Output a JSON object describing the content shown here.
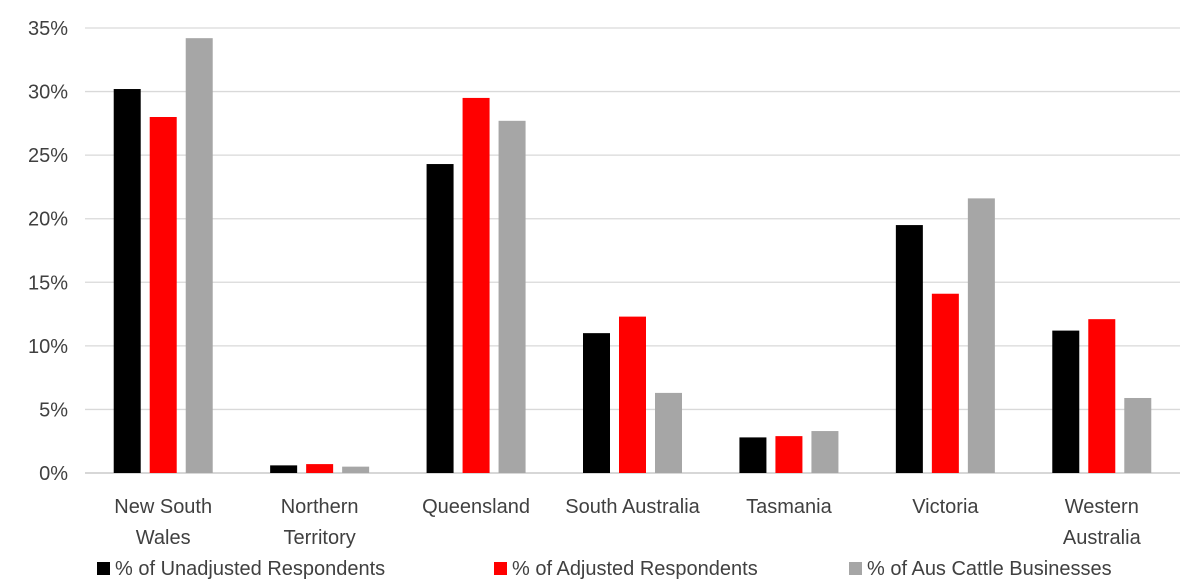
{
  "chart_data": {
    "type": "bar",
    "categories": [
      [
        "New South",
        "Wales"
      ],
      [
        "Northern",
        "Territory"
      ],
      [
        "Queensland"
      ],
      [
        "South Australia"
      ],
      [
        "Tasmania"
      ],
      [
        "Victoria"
      ],
      [
        "Western",
        "Australia"
      ]
    ],
    "series": [
      {
        "name": "% of Unadjusted Respondents",
        "color": "#000000",
        "values": [
          30.2,
          0.6,
          24.3,
          11.0,
          2.8,
          19.5,
          11.2
        ]
      },
      {
        "name": "% of Adjusted Respondents",
        "color": "#ff0000",
        "values": [
          28.0,
          0.7,
          29.5,
          12.3,
          2.9,
          14.1,
          12.1
        ]
      },
      {
        "name": "% of Aus Cattle Businesses",
        "color": "#a6a6a6",
        "values": [
          34.2,
          0.5,
          27.7,
          6.3,
          3.3,
          21.6,
          5.9
        ]
      }
    ],
    "y_ticks": [
      "0%",
      "5%",
      "10%",
      "15%",
      "20%",
      "25%",
      "30%",
      "35%"
    ],
    "ylim": [
      0,
      35
    ],
    "grid": true,
    "legend_position": "bottom"
  }
}
